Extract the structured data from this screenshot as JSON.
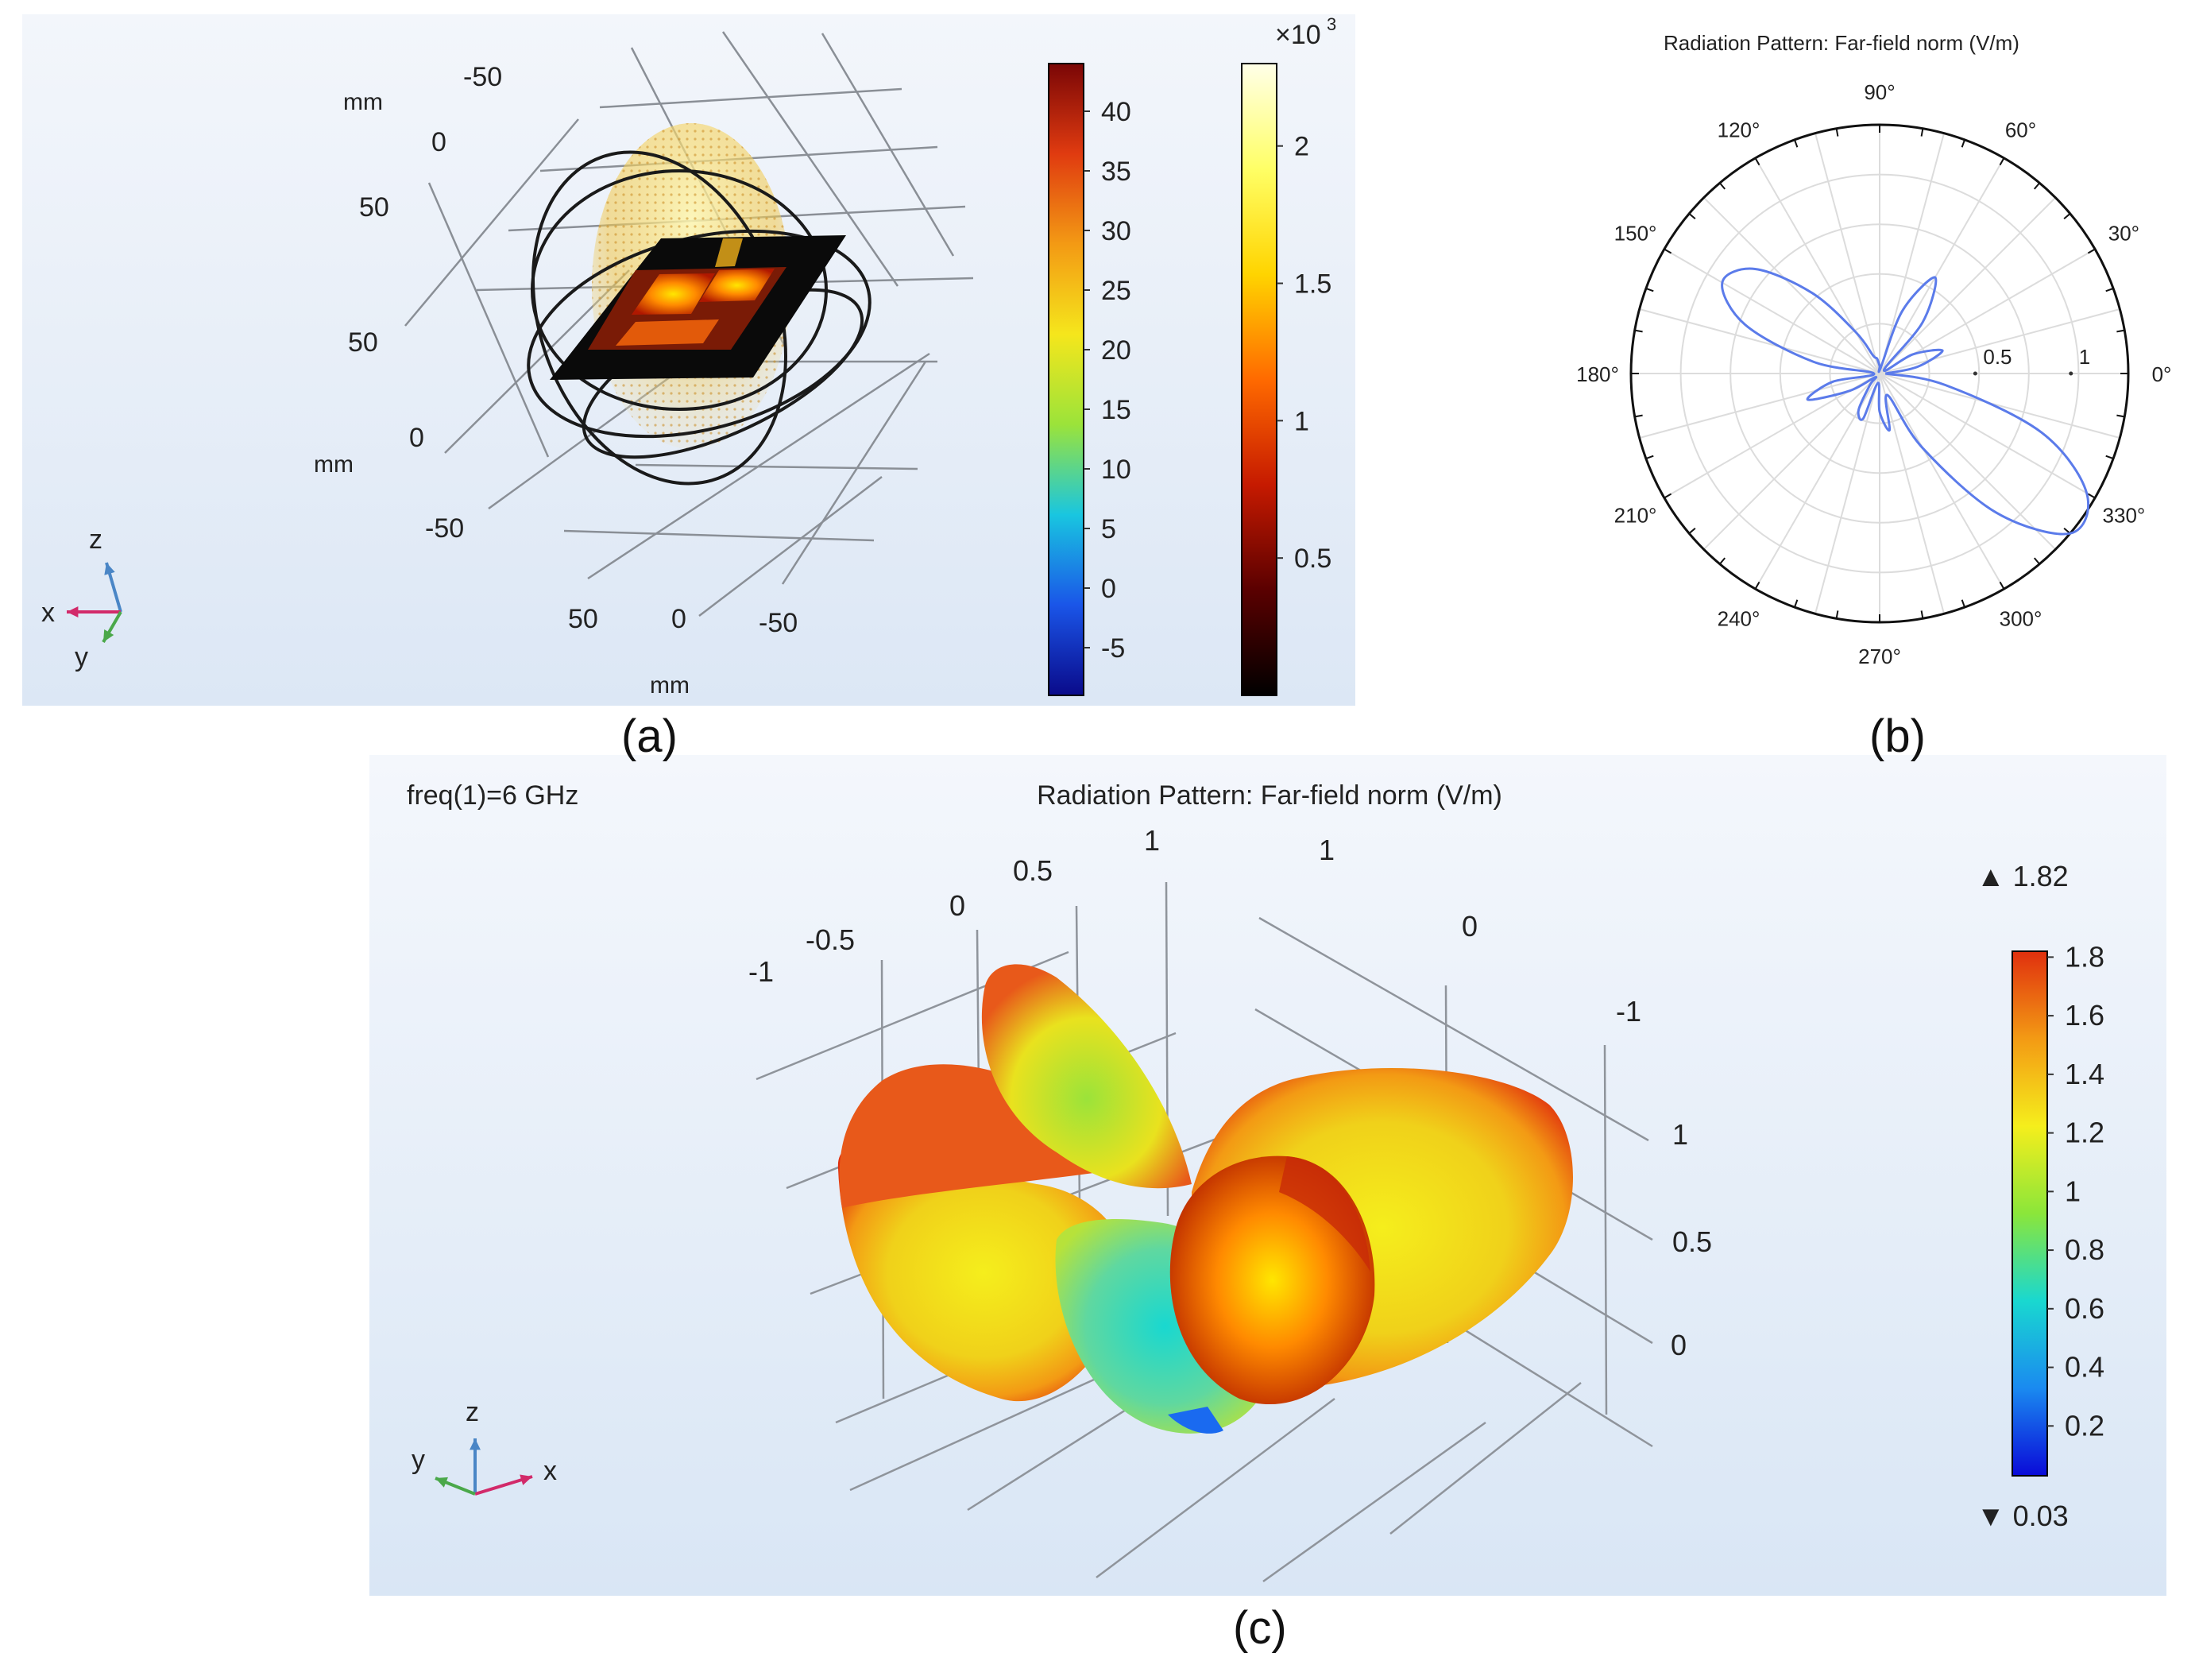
{
  "captions": [
    "(a)",
    "(b)",
    "(c)"
  ],
  "chart_data": [
    {
      "id": "a",
      "type": "3d-field-plot",
      "unit_labels": [
        "mm",
        "mm",
        "mm"
      ],
      "axis_ticks": {
        "top": [
          "-50",
          "0",
          "50"
        ],
        "left": [
          "50",
          "0",
          "-50"
        ],
        "bottom": [
          "50",
          "0",
          "-50"
        ]
      },
      "colorbar_field": {
        "ticks": [
          "40",
          "35",
          "30",
          "25",
          "20",
          "15",
          "10",
          "5",
          "0",
          "-5"
        ],
        "tick_values": [
          40,
          35,
          30,
          25,
          20,
          15,
          10,
          5,
          0,
          -5
        ],
        "range": [
          -9,
          44
        ],
        "colormap": "rainbow",
        "colors": [
          "#0a0a8a",
          "#1a55e8",
          "#19c6e0",
          "#9be33a",
          "#f5e61c",
          "#f39a14",
          "#e03b10",
          "#7a0606"
        ]
      },
      "colorbar_arrows": {
        "ticks": [
          "2",
          "1.5",
          "1",
          "0.5"
        ],
        "tick_values": [
          2,
          1.5,
          1,
          0.5
        ],
        "range": [
          0,
          2.3
        ],
        "exponent_label": "×10",
        "exponent_power": "3",
        "colormap": "thermal",
        "colors": [
          "#000000",
          "#5a0000",
          "#c61a00",
          "#ff6a00",
          "#ffd400",
          "#ffff66",
          "#ffffe8"
        ]
      },
      "triad": {
        "x": "x",
        "y": "y",
        "z": "z"
      }
    },
    {
      "id": "b",
      "type": "polar",
      "title": "Radiation Pattern: Far-field norm (V/m)",
      "angle_labels": [
        "0°",
        "30°",
        "60°",
        "90°",
        "120°",
        "150°",
        "180°",
        "210°",
        "240°",
        "270°",
        "300°",
        "330°"
      ],
      "angle_values": [
        0,
        30,
        60,
        90,
        120,
        150,
        180,
        210,
        240,
        270,
        300,
        330
      ],
      "radial_ticks": [
        "0.5",
        "1"
      ],
      "radial_tick_values": [
        0.5,
        1
      ],
      "r_max": 1.3,
      "line_color": "#5b7bea",
      "series": [
        {
          "name": "Far-field norm",
          "theta_deg": [
            0,
            10,
            20,
            30,
            40,
            50,
            60,
            70,
            80,
            90,
            100,
            110,
            120,
            130,
            140,
            150,
            160,
            170,
            180,
            190,
            200,
            210,
            220,
            230,
            240,
            250,
            260,
            270,
            280,
            290,
            300,
            310,
            320,
            330,
            340,
            350,
            360
          ],
          "r": [
            0.03,
            0.2,
            0.35,
            0.2,
            0.03,
            0.35,
            0.58,
            0.35,
            0.03,
            0.04,
            0.08,
            0.1,
            0.25,
            0.55,
            0.85,
            0.95,
            0.75,
            0.35,
            0.03,
            0.25,
            0.4,
            0.18,
            0.03,
            0.08,
            0.22,
            0.25,
            0.05,
            0.2,
            0.3,
            0.12,
            0.45,
            0.95,
            1.3,
            1.25,
            0.9,
            0.35,
            0.03
          ]
        }
      ]
    },
    {
      "id": "c",
      "type": "3d-surface",
      "title": "Radiation Pattern: Far-field norm (V/m)",
      "annotation": "freq(1)=6 GHz",
      "axis_ticks": {
        "x_top": [
          "-1",
          "-0.5",
          "0",
          "0.5",
          "1"
        ],
        "y_top": [
          "1",
          "0",
          "-1"
        ],
        "z_right": [
          "1",
          "0.5",
          "0"
        ]
      },
      "colorbar": {
        "ticks": [
          "1.8",
          "1.6",
          "1.4",
          "1.2",
          "1",
          "0.8",
          "0.6",
          "0.4",
          "0.2"
        ],
        "tick_values": [
          1.8,
          1.6,
          1.4,
          1.2,
          1,
          0.8,
          0.6,
          0.4,
          0.2
        ],
        "range": [
          0.03,
          1.82
        ],
        "max_label": "▲ 1.82",
        "min_label": "▼ 0.03",
        "colormap": "rainbow",
        "colors": [
          "#0a0ad8",
          "#1a8af0",
          "#19d8d0",
          "#8be63a",
          "#f5ee1c",
          "#f39a14",
          "#e0300e"
        ]
      },
      "triad": {
        "x": "x",
        "y": "y",
        "z": "z"
      }
    }
  ]
}
